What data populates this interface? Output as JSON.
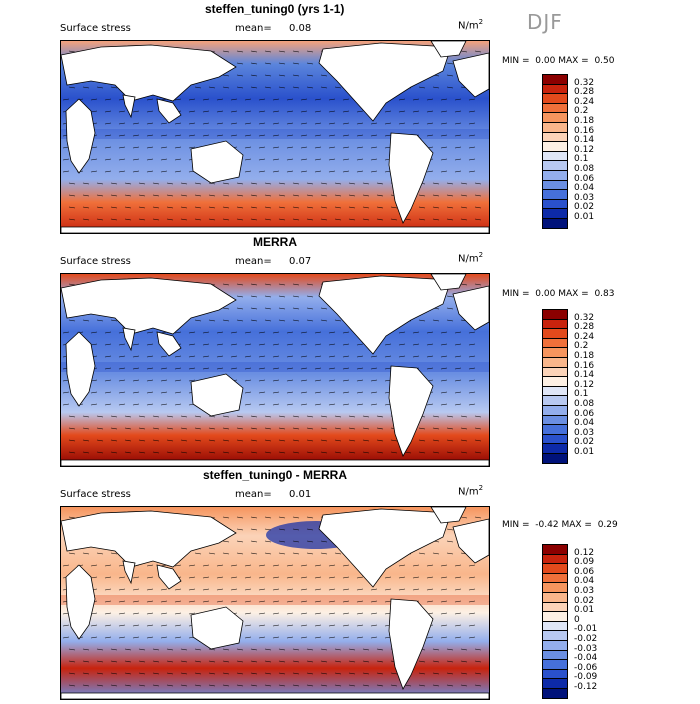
{
  "season": "DJF",
  "panels": [
    {
      "title": "steffen_tuning0 (yrs 1-1)",
      "field": "Surface stress",
      "mean_label": "mean=",
      "mean_value": "0.08",
      "units": "N/m",
      "units_exp": "2",
      "min_label": "MIN =",
      "min_value": "0.00",
      "max_label": "MAX =",
      "max_value": "0.50",
      "colorbar_labels": [
        "0.32",
        "0.28",
        "0.24",
        "0.2",
        "0.18",
        "0.16",
        "0.14",
        "0.12",
        "0.1",
        "0.08",
        "0.06",
        "0.04",
        "0.03",
        "0.02",
        "0.01"
      ],
      "colorbar_colors": [
        "#8b0000",
        "#c8230d",
        "#e34a1c",
        "#f0703a",
        "#f6955e",
        "#f9b68b",
        "#fbd3b8",
        "#fdf0e4",
        "#dfe6f7",
        "#b8c9f1",
        "#93aeec",
        "#6b8fe2",
        "#4670da",
        "#2a51cc",
        "#0d2aa8",
        "#00127a"
      ]
    },
    {
      "title": "MERRA",
      "field": "Surface stress",
      "mean_label": "mean=",
      "mean_value": "0.07",
      "units": "N/m",
      "units_exp": "2",
      "min_label": "MIN =",
      "min_value": "0.00",
      "max_label": "MAX =",
      "max_value": "0.83",
      "colorbar_labels": [
        "0.32",
        "0.28",
        "0.24",
        "0.2",
        "0.18",
        "0.16",
        "0.14",
        "0.12",
        "0.1",
        "0.08",
        "0.06",
        "0.04",
        "0.03",
        "0.02",
        "0.01"
      ],
      "colorbar_colors": [
        "#8b0000",
        "#c8230d",
        "#e34a1c",
        "#f0703a",
        "#f6955e",
        "#f9b68b",
        "#fbd3b8",
        "#fdf0e4",
        "#dfe6f7",
        "#b8c9f1",
        "#93aeec",
        "#6b8fe2",
        "#4670da",
        "#2a51cc",
        "#0d2aa8",
        "#00127a"
      ]
    },
    {
      "title": "steffen_tuning0 - MERRA",
      "field": "Surface stress",
      "mean_label": "mean=",
      "mean_value": "0.01",
      "units": "N/m",
      "units_exp": "2",
      "min_label": "MIN =",
      "min_value": "-0.42",
      "max_label": "MAX =",
      "max_value": "0.29",
      "colorbar_labels": [
        "0.12",
        "0.09",
        "0.06",
        "0.04",
        "0.03",
        "0.02",
        "0.01",
        "0",
        "-0.01",
        "-0.02",
        "-0.03",
        "-0.04",
        "-0.06",
        "-0.09",
        "-0.12"
      ],
      "colorbar_colors": [
        "#8b0000",
        "#c8230d",
        "#e34a1c",
        "#f0703a",
        "#f6955e",
        "#f9b68b",
        "#fbd3b8",
        "#fdf0e4",
        "#dfe6f7",
        "#b8c9f1",
        "#93aeec",
        "#6b8fe2",
        "#4670da",
        "#2a51cc",
        "#0d2aa8",
        "#00127a"
      ]
    }
  ]
}
